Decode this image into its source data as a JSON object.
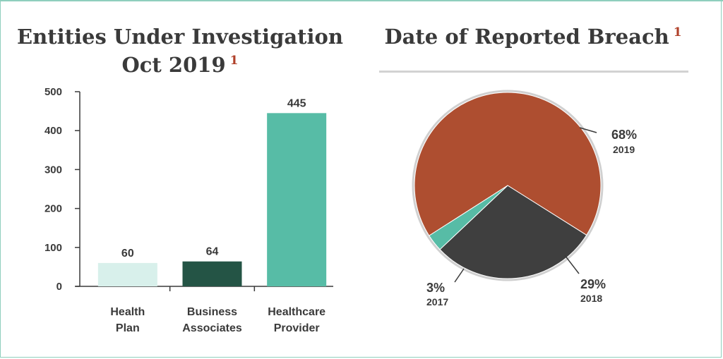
{
  "chart_data": [
    {
      "type": "bar",
      "title_line1": "Entities Under Investigation",
      "title_line2": "Oct 2019",
      "footnote": "1",
      "categories": [
        {
          "line1": "Health",
          "line2": "Plan"
        },
        {
          "line1": "Business",
          "line2": "Associates"
        },
        {
          "line1": "Healthcare",
          "line2": "Provider"
        }
      ],
      "values": [
        60,
        64,
        445
      ],
      "value_labels": [
        "60",
        "64",
        "445"
      ],
      "bar_colors": [
        "#d8f0eb",
        "#245445",
        "#57bca6"
      ],
      "ylim": [
        0,
        500
      ],
      "yticks": [
        0,
        100,
        200,
        300,
        400,
        500
      ],
      "ytick_labels": [
        "0",
        "100",
        "200",
        "300",
        "400",
        "500"
      ],
      "grid": false
    },
    {
      "type": "pie",
      "title": "Date of Reported Breach",
      "footnote": "1",
      "slices": [
        {
          "label": "2019",
          "pct_label": "68%",
          "value": 68,
          "color": "#ae4e30"
        },
        {
          "label": "2018",
          "pct_label": "29%",
          "value": 29,
          "color": "#3f3f3f"
        },
        {
          "label": "2017",
          "pct_label": "3%",
          "value": 3,
          "color": "#57bca6"
        }
      ]
    }
  ]
}
